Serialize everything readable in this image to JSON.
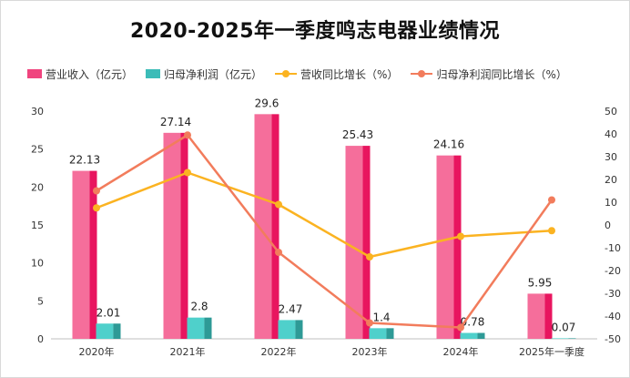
{
  "title": "2020-2025年一季度鸣志电器业绩情况",
  "chart_data": {
    "type": "bar",
    "title": "2020-2025年一季度鸣志电器业绩情况",
    "categories": [
      "2020年",
      "2021年",
      "2022年",
      "2023年",
      "2024年",
      "2025年一季度"
    ],
    "left_axis": {
      "min": 0,
      "max": 30,
      "ticks": [
        0,
        5,
        10,
        15,
        20,
        25,
        30
      ]
    },
    "right_axis": {
      "min": -50,
      "max": 50,
      "ticks": [
        50,
        40,
        30,
        20,
        10,
        0,
        -10,
        -20,
        -30,
        -40,
        -50
      ]
    },
    "grid": false,
    "legend_position": "top",
    "series": [
      {
        "name": "营业收入（亿元）",
        "type": "bar",
        "axis": "left",
        "color": "#f0447e",
        "values": [
          22.13,
          27.14,
          29.6,
          25.43,
          24.16,
          5.95
        ],
        "labels": [
          "22.13",
          "27.14",
          "29.6",
          "25.43",
          "24.16",
          "5.95"
        ]
      },
      {
        "name": "归母净利润（亿元）",
        "type": "bar",
        "axis": "left",
        "color": "#3cbcb8",
        "values": [
          2.01,
          2.8,
          2.47,
          1.4,
          0.78,
          0.07
        ],
        "labels": [
          "2.01",
          "2.8",
          "2.47",
          "1.4",
          "0.78",
          "0.07"
        ]
      },
      {
        "name": "营收同比增长（%）",
        "type": "line",
        "axis": "right",
        "color": "#fbb321",
        "values": [
          7.5,
          23,
          9,
          -14,
          -5,
          -2.5
        ]
      },
      {
        "name": "归母净利润同比增长（%）",
        "type": "line",
        "axis": "right",
        "color": "#f27c5c",
        "values": [
          15,
          39.5,
          -12,
          -43,
          -45,
          11
        ]
      }
    ]
  }
}
